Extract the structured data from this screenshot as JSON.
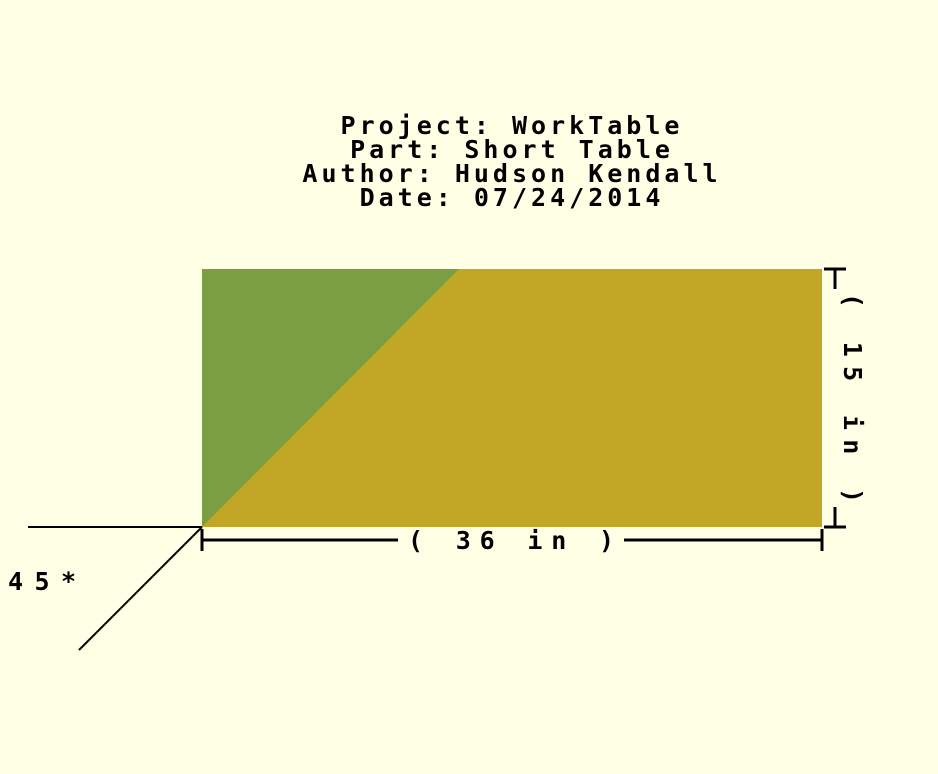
{
  "title_block": {
    "project": "Project: WorkTable",
    "part": "Part: Short Table",
    "author": "Author: Hudson Kendall",
    "date": "Date: 07/24/2014"
  },
  "drawing": {
    "width_label": "( 36 in )",
    "height_label": "( 15 in )",
    "angle_label": "45*",
    "colors": {
      "background": "#ffffe6",
      "top_face": "#c2a727",
      "side_face": "#7b9e43",
      "line": "#000000"
    }
  }
}
